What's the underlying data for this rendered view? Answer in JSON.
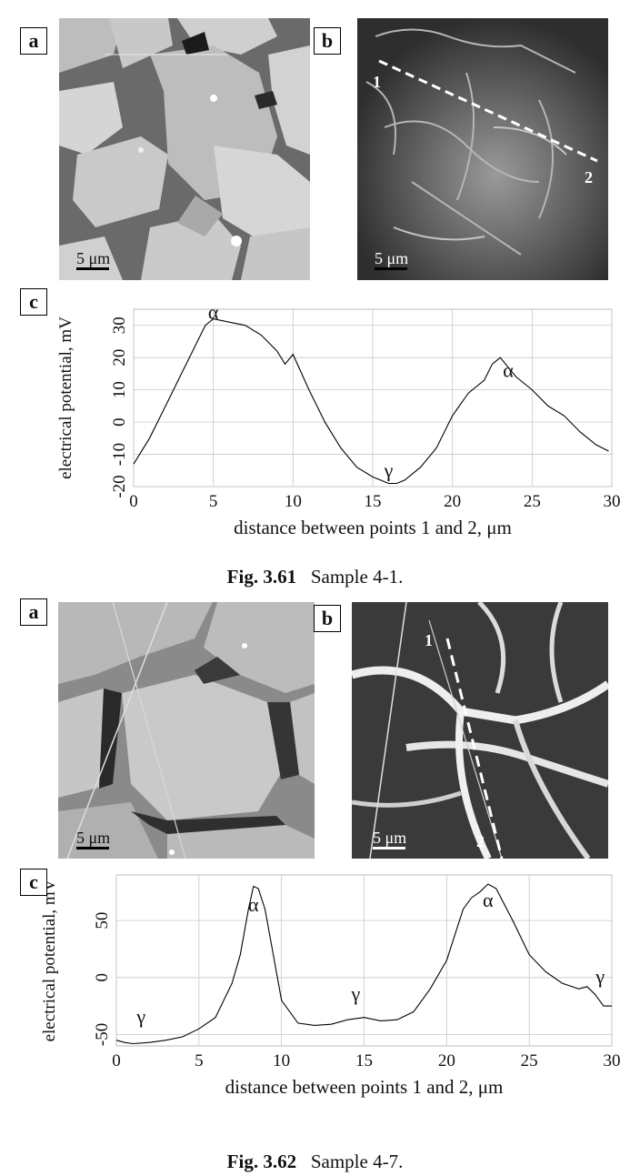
{
  "figures": [
    {
      "panels": {
        "a": "a",
        "b": "b",
        "c": "c"
      },
      "scale_bar_a": "5 μm",
      "scale_bar_b": "5 μm",
      "line_point_1": "1",
      "line_point_2": "2",
      "caption_number": "Fig. 3.61",
      "caption_text": "Sample 4-1."
    },
    {
      "panels": {
        "a": "a",
        "b": "b",
        "c": "c"
      },
      "scale_bar_a": "5 μm",
      "scale_bar_b": "5 μm",
      "line_point_1": "1",
      "line_point_2": "2",
      "caption_number": "Fig. 3.62",
      "caption_text": "Sample 4-7."
    }
  ],
  "chart_data": [
    {
      "type": "line",
      "xlabel": "distance between points 1 and 2, μm",
      "ylabel": "electrical potential, mV",
      "xlim": [
        0,
        30
      ],
      "ylim": [
        -20,
        35
      ],
      "xticks": [
        0,
        5,
        10,
        15,
        20,
        25,
        30
      ],
      "yticks": [
        -20,
        -10,
        0,
        10,
        20,
        30
      ],
      "grid": true,
      "series": [
        {
          "x": [
            0,
            1,
            2,
            3,
            4,
            4.5,
            5,
            6,
            7,
            8,
            9,
            9.5,
            10,
            11,
            12,
            13,
            14,
            15,
            16,
            16.5,
            17,
            18,
            19,
            20,
            21,
            22,
            22.5,
            23,
            23.5,
            24,
            25,
            26,
            27,
            28,
            29,
            29.8
          ],
          "y": [
            -13,
            -5,
            5,
            15,
            25,
            30,
            32,
            31,
            30,
            27,
            22,
            18,
            21,
            10,
            0,
            -8,
            -14,
            -17,
            -19,
            -19,
            -18,
            -14,
            -8,
            2,
            9,
            13,
            18,
            20,
            17,
            14,
            10,
            5,
            2,
            -3,
            -7,
            -9
          ]
        }
      ],
      "annotations": [
        {
          "text": "α",
          "x": 5,
          "y": 32
        },
        {
          "text": "γ",
          "x": 16,
          "y": -17
        },
        {
          "text": "α",
          "x": 23.5,
          "y": 14
        }
      ]
    },
    {
      "type": "line",
      "xlabel": "distance between points 1 and 2, μm",
      "ylabel": "electrical potential, mV",
      "xlim": [
        0,
        30
      ],
      "ylim": [
        -60,
        90
      ],
      "xticks": [
        0,
        5,
        10,
        15,
        20,
        25,
        30
      ],
      "yticks": [
        -50,
        0,
        50
      ],
      "grid": true,
      "series": [
        {
          "x": [
            0,
            0.5,
            1,
            2,
            3,
            4,
            5,
            6,
            7,
            7.5,
            8,
            8.3,
            8.6,
            9,
            9.5,
            10,
            11,
            12,
            13,
            14,
            15,
            16,
            17,
            18,
            19,
            20,
            21,
            21.5,
            22,
            22.5,
            23,
            24,
            25,
            26,
            27,
            28,
            28.5,
            29,
            29.5,
            30
          ],
          "y": [
            -55,
            -57,
            -58,
            -57,
            -55,
            -52,
            -45,
            -35,
            -5,
            20,
            60,
            80,
            78,
            60,
            20,
            -20,
            -40,
            -42,
            -41,
            -37,
            -35,
            -38,
            -37,
            -30,
            -10,
            15,
            60,
            70,
            75,
            82,
            78,
            50,
            20,
            5,
            -5,
            -10,
            -8,
            -15,
            -25,
            -25
          ]
        }
      ],
      "annotations": [
        {
          "text": "γ",
          "x": 1.5,
          "y": -40
        },
        {
          "text": "α",
          "x": 8.3,
          "y": 58
        },
        {
          "text": "γ",
          "x": 14.5,
          "y": -20
        },
        {
          "text": "α",
          "x": 22.5,
          "y": 62
        },
        {
          "text": "γ",
          "x": 29.3,
          "y": -5
        }
      ]
    }
  ]
}
